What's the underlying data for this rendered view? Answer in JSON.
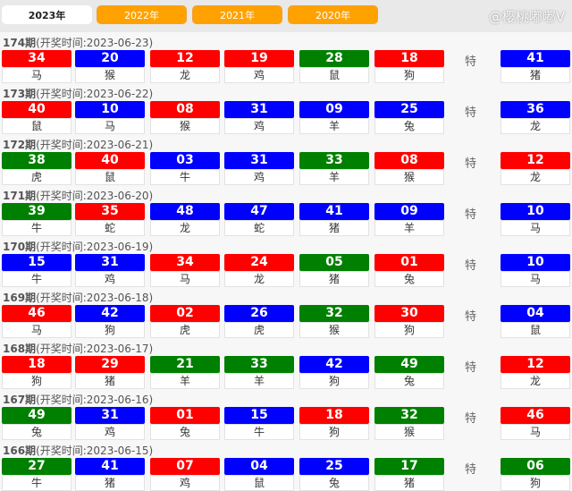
{
  "tabs": [
    "2023年",
    "2022年",
    "2021年",
    "2020年"
  ],
  "special_label": "特",
  "colors": {
    "red": "#ff0000",
    "blue": "#0000ff",
    "green": "#008000",
    "tab": "#ffa200"
  },
  "watermark": "@樱桃嘟嘟V",
  "draws": [
    {
      "issue": "174期",
      "time": "(开奖时间:2023-06-23)",
      "balls": [
        [
          "34",
          "马",
          "red"
        ],
        [
          "20",
          "猴",
          "blue"
        ],
        [
          "12",
          "龙",
          "red"
        ],
        [
          "19",
          "鸡",
          "red"
        ],
        [
          "28",
          "鼠",
          "green"
        ],
        [
          "18",
          "狗",
          "red"
        ]
      ],
      "special": [
        "41",
        "猪",
        "blue"
      ]
    },
    {
      "issue": "173期",
      "time": "(开奖时间:2023-06-22)",
      "balls": [
        [
          "40",
          "鼠",
          "red"
        ],
        [
          "10",
          "马",
          "blue"
        ],
        [
          "08",
          "猴",
          "red"
        ],
        [
          "31",
          "鸡",
          "blue"
        ],
        [
          "09",
          "羊",
          "blue"
        ],
        [
          "25",
          "兔",
          "blue"
        ]
      ],
      "special": [
        "36",
        "龙",
        "blue"
      ]
    },
    {
      "issue": "172期",
      "time": "(开奖时间:2023-06-21)",
      "balls": [
        [
          "38",
          "虎",
          "green"
        ],
        [
          "40",
          "鼠",
          "red"
        ],
        [
          "03",
          "牛",
          "blue"
        ],
        [
          "31",
          "鸡",
          "blue"
        ],
        [
          "33",
          "羊",
          "green"
        ],
        [
          "08",
          "猴",
          "red"
        ]
      ],
      "special": [
        "12",
        "龙",
        "red"
      ]
    },
    {
      "issue": "171期",
      "time": "(开奖时间:2023-06-20)",
      "balls": [
        [
          "39",
          "牛",
          "green"
        ],
        [
          "35",
          "蛇",
          "red"
        ],
        [
          "48",
          "龙",
          "blue"
        ],
        [
          "47",
          "蛇",
          "blue"
        ],
        [
          "41",
          "猪",
          "blue"
        ],
        [
          "09",
          "羊",
          "blue"
        ]
      ],
      "special": [
        "10",
        "马",
        "blue"
      ]
    },
    {
      "issue": "170期",
      "time": "(开奖时间:2023-06-19)",
      "balls": [
        [
          "15",
          "牛",
          "blue"
        ],
        [
          "31",
          "鸡",
          "blue"
        ],
        [
          "34",
          "马",
          "red"
        ],
        [
          "24",
          "龙",
          "red"
        ],
        [
          "05",
          "猪",
          "green"
        ],
        [
          "01",
          "兔",
          "red"
        ]
      ],
      "special": [
        "10",
        "马",
        "blue"
      ]
    },
    {
      "issue": "169期",
      "time": "(开奖时间:2023-06-18)",
      "balls": [
        [
          "46",
          "马",
          "red"
        ],
        [
          "42",
          "狗",
          "blue"
        ],
        [
          "02",
          "虎",
          "red"
        ],
        [
          "26",
          "虎",
          "blue"
        ],
        [
          "32",
          "猴",
          "green"
        ],
        [
          "30",
          "狗",
          "red"
        ]
      ],
      "special": [
        "04",
        "鼠",
        "blue"
      ]
    },
    {
      "issue": "168期",
      "time": "(开奖时间:2023-06-17)",
      "balls": [
        [
          "18",
          "狗",
          "red"
        ],
        [
          "29",
          "猪",
          "red"
        ],
        [
          "21",
          "羊",
          "green"
        ],
        [
          "33",
          "羊",
          "green"
        ],
        [
          "42",
          "狗",
          "blue"
        ],
        [
          "49",
          "兔",
          "green"
        ]
      ],
      "special": [
        "12",
        "龙",
        "red"
      ]
    },
    {
      "issue": "167期",
      "time": "(开奖时间:2023-06-16)",
      "balls": [
        [
          "49",
          "兔",
          "green"
        ],
        [
          "31",
          "鸡",
          "blue"
        ],
        [
          "01",
          "兔",
          "red"
        ],
        [
          "15",
          "牛",
          "blue"
        ],
        [
          "18",
          "狗",
          "red"
        ],
        [
          "32",
          "猴",
          "green"
        ]
      ],
      "special": [
        "46",
        "马",
        "red"
      ]
    },
    {
      "issue": "166期",
      "time": "(开奖时间:2023-06-15)",
      "balls": [
        [
          "27",
          "牛",
          "green"
        ],
        [
          "41",
          "猪",
          "blue"
        ],
        [
          "07",
          "鸡",
          "red"
        ],
        [
          "04",
          "鼠",
          "blue"
        ],
        [
          "25",
          "兔",
          "blue"
        ],
        [
          "17",
          "猪",
          "green"
        ]
      ],
      "special": [
        "06",
        "狗",
        "green"
      ]
    }
  ]
}
